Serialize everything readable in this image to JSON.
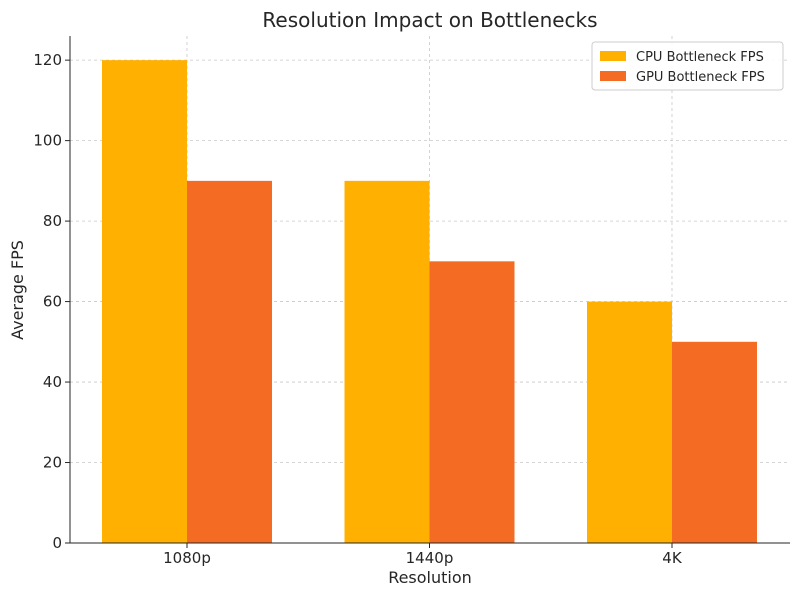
{
  "chart_data": {
    "type": "bar",
    "title": "Resolution Impact on Bottlenecks",
    "xlabel": "Resolution",
    "ylabel": "Average FPS",
    "categories": [
      "1080p",
      "1440p",
      "4K"
    ],
    "series": [
      {
        "name": "CPU Bottleneck FPS",
        "values": [
          120,
          90,
          60
        ],
        "color": "#ffb000"
      },
      {
        "name": "GPU Bottleneck FPS",
        "values": [
          90,
          70,
          50
        ],
        "color": "#f46b24"
      }
    ],
    "ylim": [
      0,
      126
    ],
    "yticks": [
      0,
      20,
      40,
      60,
      80,
      100,
      120
    ],
    "grid": true,
    "legend_position": "top-right"
  }
}
